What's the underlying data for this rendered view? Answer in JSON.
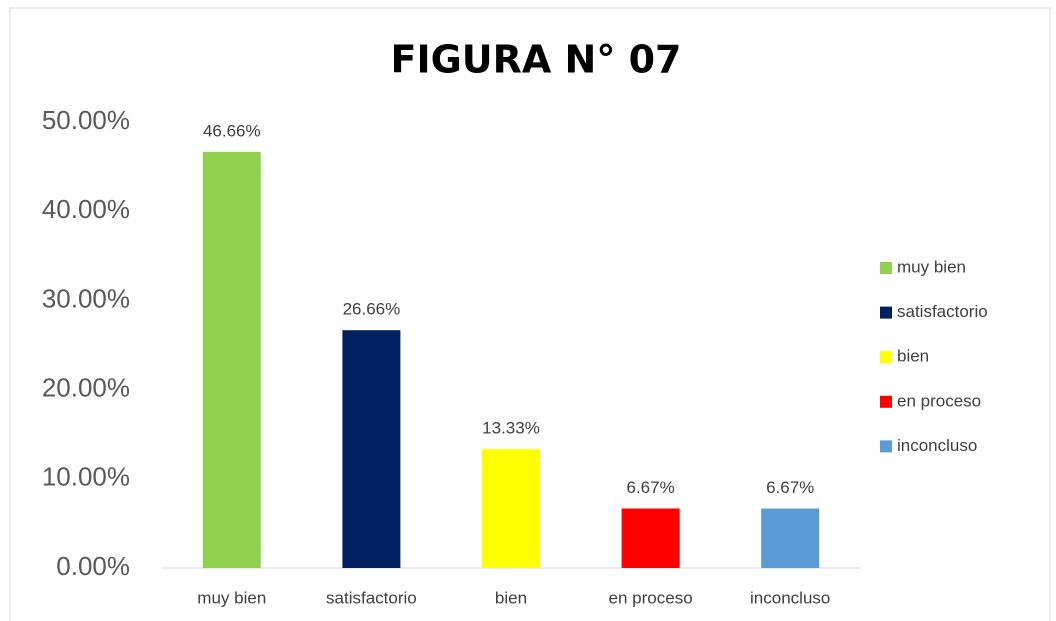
{
  "chart_data": {
    "type": "bar",
    "title": "FIGURA N° 07",
    "categories": [
      "muy bien",
      "satisfactorio",
      "bien",
      "en proceso",
      "inconcluso"
    ],
    "values": [
      46.66,
      26.66,
      13.33,
      6.67,
      6.67
    ],
    "value_labels": [
      "46.66%",
      "26.66%",
      "13.33%",
      "6.67%",
      "6.67%"
    ],
    "colors": [
      "#92d050",
      "#002060",
      "#ffff00",
      "#ff0000",
      "#5b9bd5"
    ],
    "ylim": [
      0,
      50
    ],
    "yticks": [
      {
        "value": 0,
        "label": "0.00%"
      },
      {
        "value": 10,
        "label": "10.00%"
      },
      {
        "value": 20,
        "label": "20.00%"
      },
      {
        "value": 30,
        "label": "30.00%"
      },
      {
        "value": 40,
        "label": "40.00%"
      },
      {
        "value": 50,
        "label": "50.00%"
      }
    ],
    "grid": false,
    "legend": "right"
  }
}
